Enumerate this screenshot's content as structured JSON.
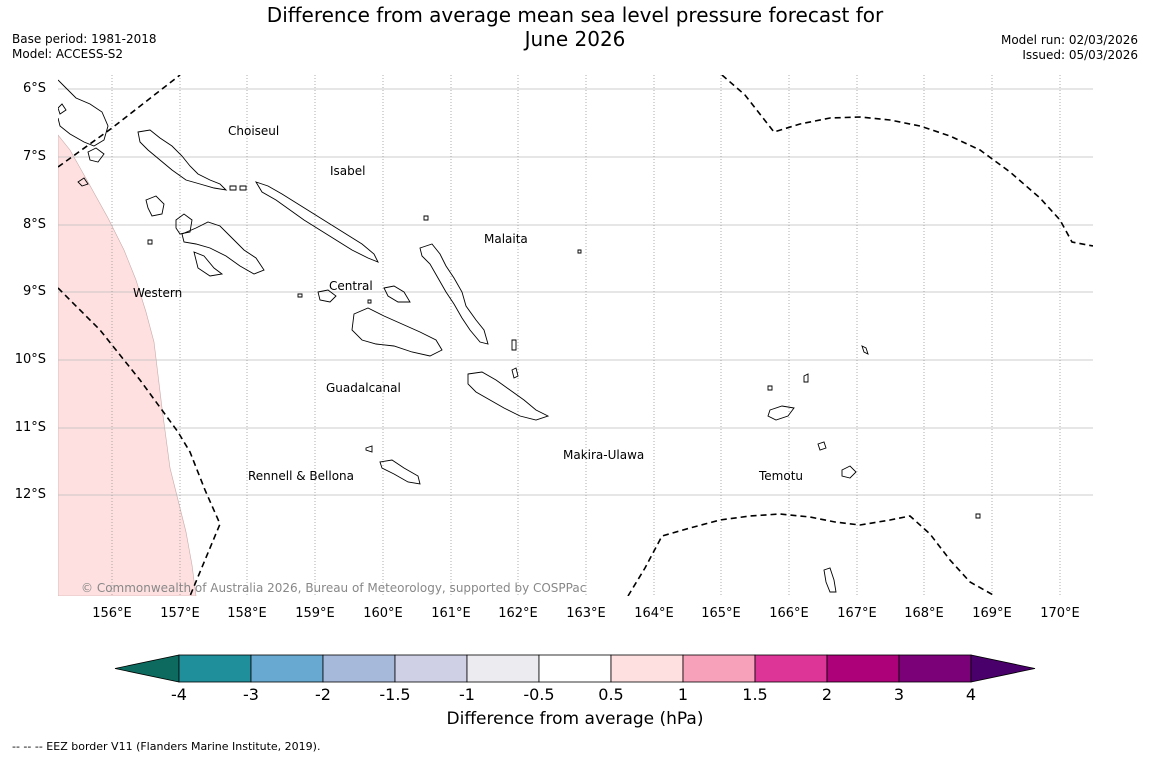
{
  "title": {
    "line1": "Difference from average mean sea level pressure forecast for",
    "line2": "June 2026"
  },
  "meta_left": {
    "base_period": "Base period: 1981-2018",
    "model": "Model: ACCESS-S2"
  },
  "meta_right": {
    "model_run": "Model run: 02/03/2026",
    "issued": "Issued: 05/03/2026"
  },
  "latitude_labels": [
    "6°S",
    "7°S",
    "8°S",
    "9°S",
    "10°S",
    "11°S",
    "12°S"
  ],
  "longitude_labels": [
    "156°E",
    "157°E",
    "158°E",
    "159°E",
    "160°E",
    "161°E",
    "162°E",
    "163°E",
    "164°E",
    "165°E",
    "166°E",
    "167°E",
    "168°E",
    "169°E",
    "170°E"
  ],
  "regions": {
    "choiseul": "Choiseul",
    "isabel": "Isabel",
    "malaita": "Malaita",
    "western": "Western",
    "central": "Central",
    "guadalcanal": "Guadalcanal",
    "makira": "Makira-Ulawa",
    "rennell": "Rennell & Bellona",
    "temotu": "Temotu"
  },
  "copyright": "© Commonwealth of Australia 2026, Bureau of Meteorology, supported by COSPPac",
  "colorbar": {
    "title": "Difference from average (hPa)",
    "ticks": [
      "-4",
      "-3",
      "-2",
      "-1.5",
      "-1",
      "-0.5",
      "0.5",
      "1",
      "1.5",
      "2",
      "3",
      "4"
    ],
    "colors": {
      "below_min": "#0c6b5e",
      "bins": [
        "#1e8f9b",
        "#67a9d0",
        "#a6b9da",
        "#cfd0e6",
        "#ecebf0",
        "#ffffff",
        "#fde0df",
        "#f7a1bb",
        "#dd3597",
        "#ad0179",
        "#7a0177"
      ],
      "above_max": "#49006a"
    }
  },
  "legend_footnote": "--  --  -- EEZ border V11 (Flanders Marine Institute, 2019)."
}
